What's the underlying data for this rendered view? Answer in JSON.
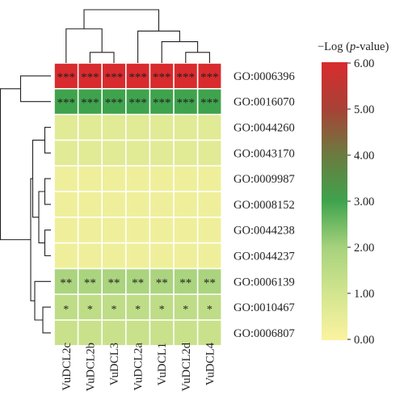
{
  "chart_data": {
    "type": "heatmap",
    "columns": [
      "VuDCL2c",
      "VuDCL2b",
      "VuDCL3",
      "VuDCL2a",
      "VuDCL1",
      "VuDCL2d",
      "VuDCL4"
    ],
    "rows": [
      "GO:0006396",
      "GO:0016070",
      "GO:0044260",
      "GO:0043170",
      "GO:0009987",
      "GO:0008152",
      "GO:0044238",
      "GO:0044237",
      "GO:0006139",
      "GO:0010467",
      "GO:0006807"
    ],
    "values": [
      [
        6.0,
        6.0,
        6.0,
        6.0,
        6.0,
        6.0,
        6.0
      ],
      [
        3.0,
        3.0,
        3.0,
        3.0,
        3.0,
        3.0,
        3.0
      ],
      [
        0.65,
        0.65,
        0.65,
        0.65,
        0.65,
        0.65,
        0.65
      ],
      [
        0.65,
        0.65,
        0.65,
        0.65,
        0.65,
        0.65,
        0.65
      ],
      [
        0.3,
        0.3,
        0.3,
        0.3,
        0.3,
        0.3,
        0.3
      ],
      [
        0.3,
        0.3,
        0.3,
        0.3,
        0.3,
        0.3,
        0.3
      ],
      [
        0.3,
        0.3,
        0.3,
        0.3,
        0.3,
        0.3,
        0.3
      ],
      [
        0.3,
        0.3,
        0.3,
        0.3,
        0.3,
        0.3,
        0.3
      ],
      [
        1.9,
        1.9,
        1.9,
        1.9,
        1.9,
        1.9,
        1.9
      ],
      [
        1.45,
        1.45,
        1.45,
        1.45,
        1.45,
        1.45,
        1.45
      ],
      [
        1.2,
        1.2,
        1.2,
        1.2,
        1.2,
        1.2,
        1.2
      ]
    ],
    "annotations": [
      [
        "***",
        "***",
        "***",
        "***",
        "***",
        "***",
        "***"
      ],
      [
        "***",
        "***",
        "***",
        "***",
        "***",
        "***",
        "***"
      ],
      [
        "",
        "",
        "",
        "",
        "",
        "",
        ""
      ],
      [
        "",
        "",
        "",
        "",
        "",
        "",
        ""
      ],
      [
        "",
        "",
        "",
        "",
        "",
        "",
        ""
      ],
      [
        "",
        "",
        "",
        "",
        "",
        "",
        ""
      ],
      [
        "",
        "",
        "",
        "",
        "",
        "",
        ""
      ],
      [
        "",
        "",
        "",
        "",
        "",
        "",
        ""
      ],
      [
        "**",
        "**",
        "**",
        "**",
        "**",
        "**",
        "**"
      ],
      [
        "*",
        "*",
        "*",
        "*",
        "*",
        "*",
        "*"
      ],
      [
        "",
        "",
        "",
        "",
        "",
        "",
        ""
      ]
    ],
    "legend": {
      "title": "−Log (p-value)",
      "range": [
        0,
        6
      ],
      "ticks": [
        "0.00",
        "1.00",
        "2.00",
        "3.00",
        "4.00",
        "5.00",
        "6.00"
      ],
      "colors": [
        "#fbf3a0",
        "#d3e58f",
        "#a7d27d",
        "#3fa34d",
        "#6b7b40",
        "#a84236",
        "#d92b2e"
      ]
    },
    "column_dendrogram": {
      "leaves": [
        "VuDCL2c",
        "VuDCL2b",
        "VuDCL3",
        "VuDCL2a",
        "VuDCL1",
        "VuDCL2d",
        "VuDCL4"
      ],
      "merges": [
        {
          "nodes": [
            "VuDCL2b",
            "VuDCL3"
          ],
          "height": 1
        },
        {
          "nodes": [
            "VuDCL2d",
            "VuDCL4"
          ],
          "height": 1
        },
        {
          "nodes": [
            "VuDCL1",
            "VuDCL2d+VuDCL4"
          ],
          "height": 2
        },
        {
          "nodes": [
            "VuDCL2a",
            "VuDCL1+VuDCL2d+VuDCL4"
          ],
          "height": 3
        },
        {
          "nodes": [
            "VuDCL2c",
            "VuDCL2b+VuDCL3"
          ],
          "height": 3.2
        },
        {
          "nodes": [
            "left",
            "right"
          ],
          "height": 5
        }
      ]
    },
    "row_dendrogram": {
      "leaves": [
        "GO:0006396",
        "GO:0016070",
        "GO:0044260",
        "GO:0043170",
        "GO:0009987",
        "GO:0008152",
        "GO:0044238",
        "GO:0044237",
        "GO:0006139",
        "GO:0010467",
        "GO:0006807"
      ],
      "merges": [
        {
          "nodes": [
            "GO:0006396",
            "GO:0016070"
          ],
          "height": 1.5
        },
        {
          "nodes": [
            "GO:0044260",
            "GO:0043170"
          ],
          "height": 0.3
        },
        {
          "nodes": [
            "GO:0009987",
            "GO:0008152"
          ],
          "height": 0.3
        },
        {
          "nodes": [
            "GO:0044238",
            "GO:0044237"
          ],
          "height": 0.3
        },
        {
          "nodes": [
            "GO:0009987+GO:0008152",
            "GO:0044238+GO:0044237"
          ],
          "height": 0.6
        },
        {
          "nodes": [
            "GO:0044260+GO:0043170",
            "GO:0009987..GO:0044237"
          ],
          "height": 0.9
        },
        {
          "nodes": [
            "GO:0010467",
            "GO:0006807"
          ],
          "height": 0.4
        },
        {
          "nodes": [
            "GO:0006139",
            "GO:0010467+GO:0006807"
          ],
          "height": 0.8
        },
        {
          "nodes": [
            "GO:0044260..GO:0044237",
            "GO:0006139..GO:0006807"
          ],
          "height": 1.0
        },
        {
          "nodes": [
            "GO:0006396+GO:0016070",
            "GO:0044260..GO:0006807"
          ],
          "height": 2.5
        }
      ]
    }
  }
}
